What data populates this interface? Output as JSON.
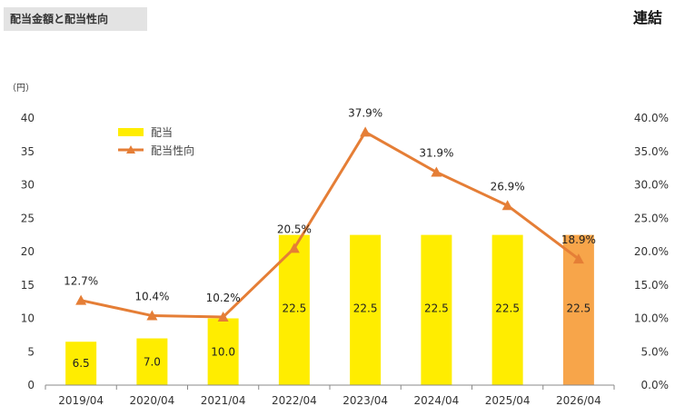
{
  "header": {
    "title": "配当金額と配当性向",
    "scope": "連結"
  },
  "colors": {
    "bar": "#ffed00",
    "bar_forecast": "#f7a54a",
    "line": "#e57e36",
    "axis": "#888888"
  },
  "chart_data": {
    "type": "bar",
    "categories": [
      "2019/04",
      "2020/04",
      "2021/04",
      "2022/04",
      "2023/04",
      "2024/04",
      "2025/04",
      "2026/04"
    ],
    "y_unit": "（円）",
    "ylim": [
      0,
      40
    ],
    "y_ticks": [
      "0",
      "5",
      "10",
      "15",
      "20",
      "25",
      "30",
      "35",
      "40"
    ],
    "y2lim": [
      0,
      40
    ],
    "y2_ticks": [
      "0.0%",
      "5.0%",
      "10.0%",
      "15.0%",
      "20.0%",
      "25.0%",
      "30.0%",
      "35.0%",
      "40.0%"
    ],
    "grid": false,
    "legend_position": "top-left",
    "series": [
      {
        "name": "配当",
        "type": "bar",
        "values": [
          6.5,
          7.0,
          10.0,
          22.5,
          22.5,
          22.5,
          22.5,
          22.5
        ],
        "labels": [
          "6.5",
          "7.0",
          "10.0",
          "22.5",
          "22.5",
          "22.5",
          "22.5",
          "22.5"
        ],
        "highlight_last": true
      },
      {
        "name": "配当性向",
        "type": "line",
        "axis": "right",
        "values": [
          12.7,
          10.4,
          10.2,
          20.5,
          37.9,
          31.9,
          26.9,
          18.9
        ],
        "labels": [
          "12.7%",
          "10.4%",
          "10.2%",
          "20.5%",
          "37.9%",
          "31.9%",
          "26.9%",
          "18.9%"
        ]
      }
    ]
  }
}
